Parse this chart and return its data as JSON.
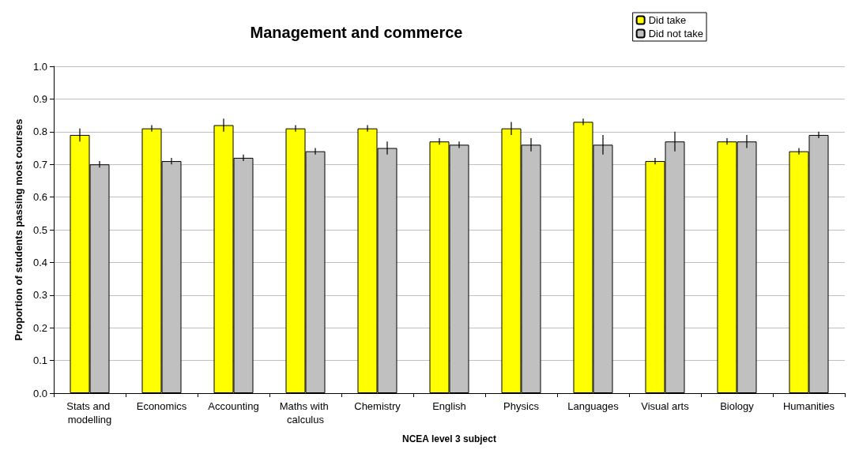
{
  "chart_data": {
    "type": "bar",
    "title": "Management and commerce",
    "xlabel": "NCEA level 3 subject",
    "ylabel": "Proportion of students passing most courses",
    "categories": [
      "Stats and modelling",
      "Economics",
      "Accounting",
      "Maths with calculus",
      "Chemistry",
      "English",
      "Physics",
      "Languages",
      "Visual arts",
      "Biology",
      "Humanities"
    ],
    "series": [
      {
        "name": "Did take",
        "color": "#ffff00",
        "values": [
          0.79,
          0.81,
          0.82,
          0.81,
          0.81,
          0.77,
          0.81,
          0.83,
          0.71,
          0.77,
          0.74
        ],
        "errors": [
          0.02,
          0.01,
          0.02,
          0.01,
          0.01,
          0.01,
          0.02,
          0.01,
          0.01,
          0.01,
          0.01
        ]
      },
      {
        "name": "Did not take",
        "color": "#c0c0c0",
        "values": [
          0.7,
          0.71,
          0.72,
          0.74,
          0.75,
          0.76,
          0.76,
          0.76,
          0.77,
          0.77,
          0.79
        ],
        "errors": [
          0.01,
          0.01,
          0.01,
          0.01,
          0.02,
          0.01,
          0.02,
          0.03,
          0.03,
          0.02,
          0.01
        ]
      }
    ],
    "ylim": [
      0,
      1
    ],
    "yticks": [
      {
        "value": 0,
        "label": "0.0"
      },
      0.1,
      0.2,
      0.3,
      0.4,
      0.5,
      0.6,
      0.7,
      0.8,
      0.9,
      {
        "value": 1,
        "label": "1.0"
      }
    ],
    "grid": "y",
    "legend": "top right"
  }
}
